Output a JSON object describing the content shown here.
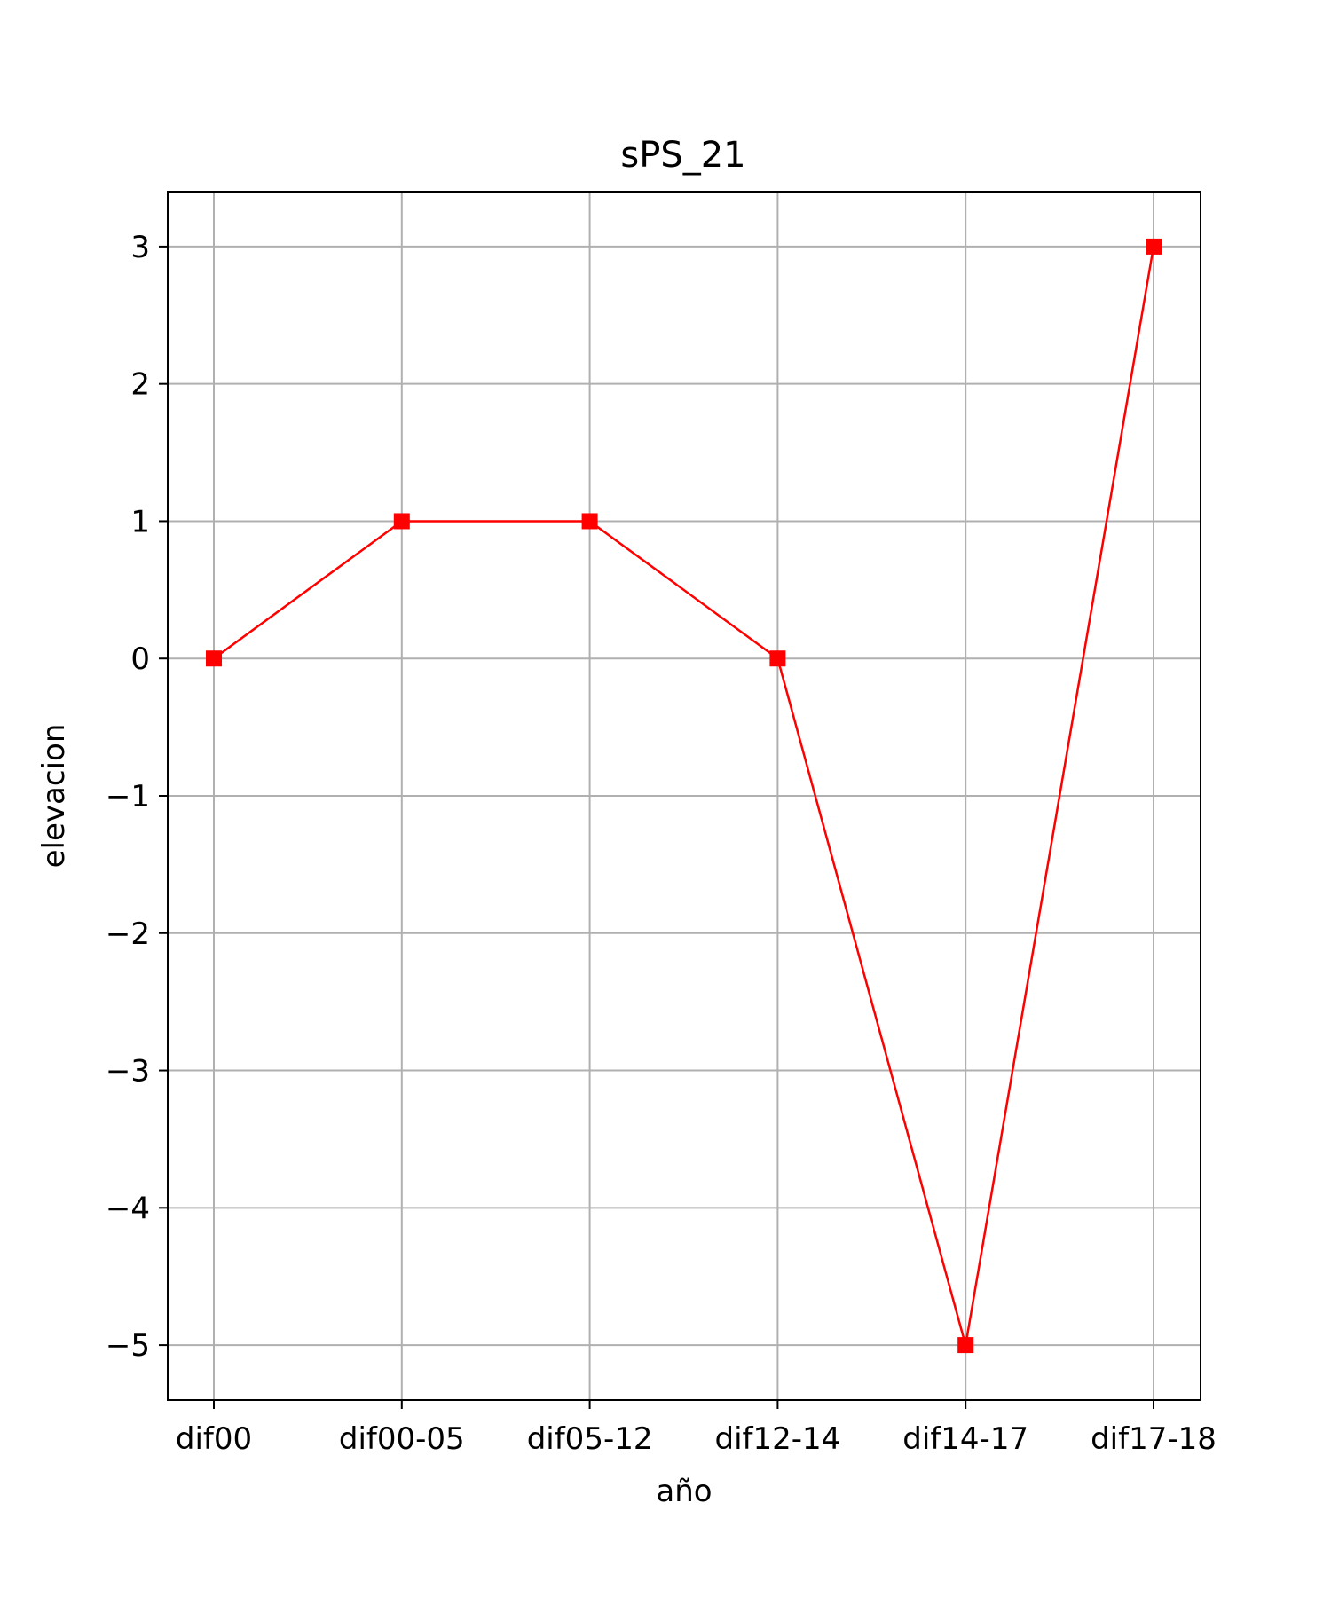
{
  "chart_data": {
    "type": "line",
    "title": "sPS_21",
    "xlabel": "año",
    "ylabel": "elevacion",
    "categories": [
      "dif00",
      "dif00-05",
      "dif05-12",
      "dif12-14",
      "dif14-17",
      "dif17-18"
    ],
    "series": [
      {
        "values": [
          0,
          1,
          1,
          0,
          -5,
          3
        ],
        "color": "#ff0000",
        "marker": "square"
      }
    ],
    "yticks": [
      3,
      2,
      1,
      0,
      -1,
      -2,
      -3,
      -4,
      -5
    ],
    "ytick_labels": [
      "3",
      "2",
      "1",
      "0",
      "−1",
      "−2",
      "−3",
      "−4",
      "−5"
    ],
    "ylim": [
      -5.4,
      3.4
    ],
    "grid": true
  }
}
